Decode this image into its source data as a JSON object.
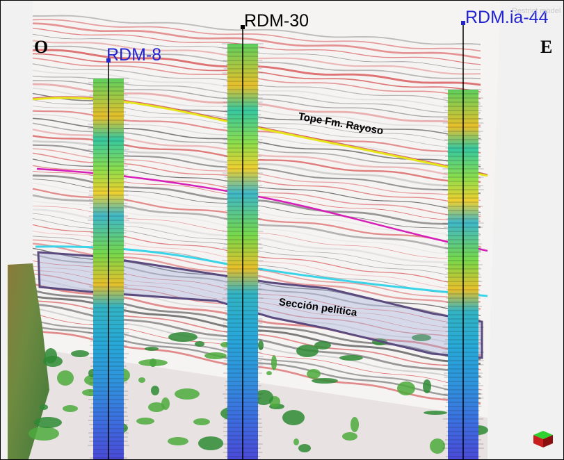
{
  "directions": {
    "west": "O",
    "east": "E"
  },
  "wells": [
    {
      "name": "RDM-8",
      "color": "#2323d0"
    },
    {
      "name": "RDM-30",
      "color": "#000000"
    },
    {
      "name": "RDM.ia-44",
      "color": "#2323d0"
    }
  ],
  "horizons": {
    "rayoso": {
      "label": "Tope Fm. Rayoso",
      "color": "#e6e61a"
    },
    "pink": {
      "color": "#d61fb8"
    },
    "cyan": {
      "color": "#3ad4e8"
    }
  },
  "interval": {
    "label": "Sección pelítica",
    "border_color": "#5a4a7e"
  },
  "watermark": {
    "text": "Restrict model"
  },
  "icons": {
    "orientation_cube": "cube-icon"
  }
}
